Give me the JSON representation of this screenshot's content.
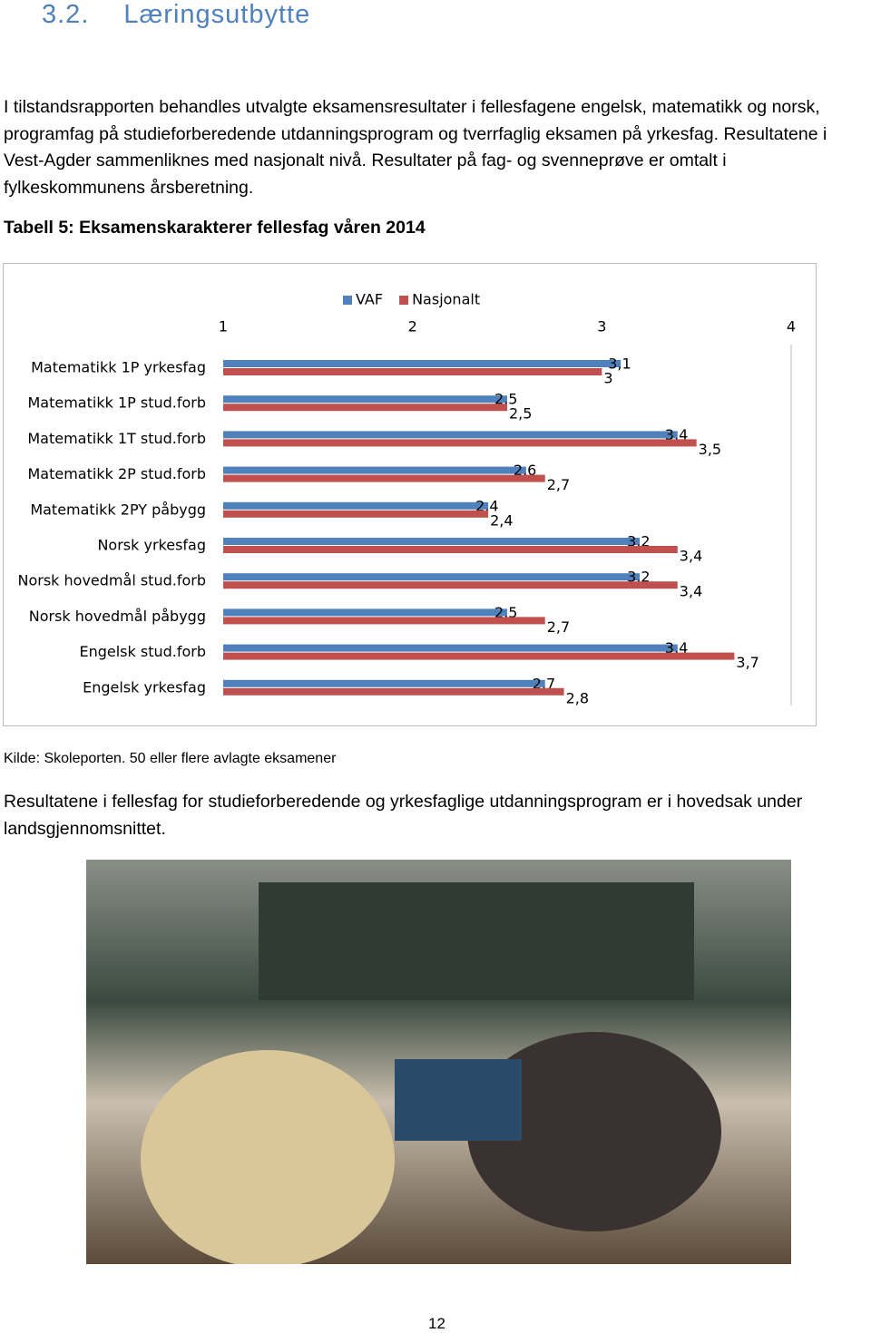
{
  "heading": {
    "number": "3.2.",
    "title": "Læringsutbytte"
  },
  "intro": "I tilstandsrapporten behandles utvalgte eksamensresultater i fellesfagene engelsk, matematikk og norsk, programfag på studieforberedende utdanningsprogram og tverrfaglig eksamen på yrkesfag. Resultatene i Vest-Agder sammenliknes med nasjonalt nivå. Resultater på fag- og svenneprøve er omtalt i fylkeskommunens årsberetning.",
  "caption": "Tabell 5: Eksamenskarakterer fellesfag våren 2014",
  "chart_data": {
    "type": "hbar",
    "categories": [
      "Matematikk 1P yrkesfag",
      "Matematikk 1P stud.forb",
      "Matematikk 1T stud.forb",
      "Matematikk 2P stud.forb",
      "Matematikk 2PY påbygg",
      "Norsk yrkesfag",
      "Norsk hovedmål stud.forb",
      "Norsk hovedmål påbygg",
      "Engelsk stud.forb",
      "Engelsk yrkesfag"
    ],
    "series": [
      {
        "name": "VAF",
        "color": "#4f81bd",
        "values": [
          3.1,
          2.5,
          3.4,
          2.6,
          2.4,
          3.2,
          3.2,
          2.5,
          3.4,
          2.7
        ],
        "value_labels": [
          "3,1",
          "2,5",
          "3,4",
          "2,6",
          "2,4",
          "3,2",
          "3,2",
          "2,5",
          "3,4",
          "2,7"
        ]
      },
      {
        "name": "Nasjonalt",
        "color": "#c0504d",
        "values": [
          3,
          2.5,
          3.5,
          2.7,
          2.4,
          3.4,
          3.4,
          2.7,
          3.7,
          2.8
        ],
        "value_labels": [
          "3",
          "2,5",
          "3,5",
          "2,7",
          "2,4",
          "3,4",
          "3,4",
          "2,7",
          "3,7",
          "2,8"
        ]
      }
    ],
    "xlim": [
      1,
      4
    ],
    "xticks": [
      1,
      2,
      3,
      4
    ],
    "legend": "top"
  },
  "source": "Kilde: Skoleporten. 50 eller flere avlagte eksamener",
  "conclusion": "Resultatene i fellesfag for studieforberedende og yrkesfaglige utdanningsprogram er i hovedsak under landsgjennomsnittet.",
  "page_number": "12"
}
